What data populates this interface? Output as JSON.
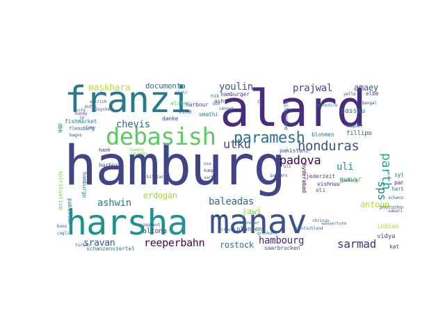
{
  "words": [
    {
      "text": "hamburg",
      "color": "#414487"
    },
    {
      "text": "alard",
      "color": "#472d7b"
    },
    {
      "text": "franzi",
      "color": "#2a788e"
    },
    {
      "text": "harsha",
      "color": "#21918c"
    },
    {
      "text": "manav",
      "color": "#3b528b"
    },
    {
      "text": "debasish",
      "color": "#5ec962"
    },
    {
      "text": "paramesh",
      "color": "#2c728e"
    },
    {
      "text": "honduras",
      "color": "#3b528b"
    },
    {
      "text": "prajwal",
      "color": "#3e4989"
    },
    {
      "text": "maskhara",
      "color": "#bddf26"
    },
    {
      "text": "documenta",
      "color": "#2c728e"
    },
    {
      "text": "youlin",
      "color": "#3b528b"
    },
    {
      "text": "utku",
      "color": "#414487"
    },
    {
      "text": "chevis",
      "color": "#31688e"
    },
    {
      "text": "padova",
      "color": "#440154"
    },
    {
      "text": "ashwin",
      "color": "#2a788e"
    },
    {
      "text": "erdogan",
      "color": "#a0da39"
    },
    {
      "text": "baleadas",
      "color": "#31688e"
    },
    {
      "text": "jawi",
      "color": "#7ad151"
    },
    {
      "text": "hambourg",
      "color": "#482878"
    },
    {
      "text": "sarmad",
      "color": "#472d7b"
    },
    {
      "text": "reeperbahn",
      "color": "#440154"
    },
    {
      "text": "rostock",
      "color": "#2c728e"
    },
    {
      "text": "sravan",
      "color": "#3b528b"
    },
    {
      "text": "altona",
      "color": "#414487"
    },
    {
      "text": "antoon",
      "color": "#bddf26"
    },
    {
      "text": "amaey",
      "color": "#3b528b"
    },
    {
      "text": "parth",
      "color": "#22a884"
    },
    {
      "text": "sps",
      "color": "#2a788e"
    },
    {
      "text": "gunar",
      "color": "#5ec962"
    },
    {
      "text": "uli",
      "color": "#21918c"
    },
    {
      "text": "sylt",
      "color": "#2c728e"
    },
    {
      "text": "panama",
      "color": "#482878"
    },
    {
      "text": "harburg",
      "color": "#2a788e"
    },
    {
      "text": "passau",
      "color": "#2c728e"
    },
    {
      "text": "fillipo",
      "color": "#3b528b"
    },
    {
      "text": "copan",
      "color": "#31688e"
    },
    {
      "text": "planten",
      "color": "#31688e"
    },
    {
      "text": "harbour",
      "color": "#3e4989"
    },
    {
      "text": "danke",
      "color": "#414487"
    },
    {
      "text": "eike",
      "color": "#3b528b"
    },
    {
      "text": "alster",
      "color": "#5ec962"
    },
    {
      "text": "smathi",
      "color": "#2a788e"
    },
    {
      "text": "hamburger",
      "color": "#414487"
    },
    {
      "text": "ash",
      "color": "#3e4989"
    },
    {
      "text": "nik",
      "color": "#2a788e"
    },
    {
      "text": "pakistani",
      "color": "#3b528b"
    },
    {
      "text": "vishnuu",
      "color": "#482878"
    },
    {
      "text": "jederzeit",
      "color": "#3e4989"
    },
    {
      "text": "oli",
      "color": "#414487"
    },
    {
      "text": "hyderabad",
      "color": "#440154"
    },
    {
      "text": "milwaukee",
      "color": "#2a788e"
    },
    {
      "text": "blohmen",
      "color": "#2a788e"
    },
    {
      "text": "elbe",
      "color": "#3e4989"
    },
    {
      "text": "photoshoot",
      "color": "#2c728e"
    },
    {
      "text": "indian",
      "color": "#bddf26"
    },
    {
      "text": "vidya",
      "color": "#3b528b"
    },
    {
      "text": "kat",
      "color": "#414487"
    },
    {
      "text": "schanzenviertel",
      "color": "#2a788e"
    },
    {
      "text": "saarbrucken",
      "color": "#3b528b"
    },
    {
      "text": "fishmarket",
      "color": "#2a788e"
    },
    {
      "text": "flensburg",
      "color": "#3b528b"
    },
    {
      "text": "hanh",
      "color": "#482878"
    },
    {
      "text": "harbor",
      "color": "#3e4989"
    },
    {
      "text": "hamburgo",
      "color": "#2a788e"
    },
    {
      "text": "pakistan",
      "color": "#2a788e"
    },
    {
      "text": "spiritualism",
      "color": "#7ad151"
    },
    {
      "text": "dbk",
      "color": "#31688e"
    },
    {
      "text": "tomy",
      "color": "#3b528b"
    },
    {
      "text": "psyche",
      "color": "#414487"
    },
    {
      "text": "ulirich",
      "color": "#3e4989"
    },
    {
      "text": "jp",
      "color": "#3b528b"
    },
    {
      "text": "cj",
      "color": "#3b528b"
    },
    {
      "text": "hannover",
      "color": "#31688e"
    },
    {
      "text": "deutschland",
      "color": "#2c728e"
    },
    {
      "text": "payment",
      "color": "#3e4989"
    },
    {
      "text": "turkan",
      "color": "#31688e"
    },
    {
      "text": "cagli",
      "color": "#31688e"
    },
    {
      "text": "buno",
      "color": "#414487"
    },
    {
      "text": "sabari",
      "color": "#3b528b"
    },
    {
      "text": "chrinun",
      "color": "#31688e"
    },
    {
      "text": "usa",
      "color": "#31688e"
    },
    {
      "text": "kumpir",
      "color": "#414487"
    },
    {
      "text": "sarkie",
      "color": "#3b528b"
    },
    {
      "text": "billiards",
      "color": "#3e4989"
    },
    {
      "text": "och",
      "color": "#3e4989"
    },
    {
      "text": "bagos",
      "color": "#3b528b"
    },
    {
      "text": "cennet",
      "color": "#3b528b"
    },
    {
      "text": "schanze",
      "color": "#3e4989"
    },
    {
      "text": "grunkohl",
      "color": "#2a788e"
    },
    {
      "text": "hamburg",
      "color": "#3e4989"
    },
    {
      "text": "passaru",
      "color": "#414487"
    },
    {
      "text": "tweets",
      "color": "#7ad151"
    },
    {
      "text": "uli",
      "color": "#3e4989"
    },
    {
      "text": "wasserturm",
      "color": "#2c728e"
    },
    {
      "text": "mutti",
      "color": "#3b528b"
    },
    {
      "text": "airport",
      "color": "#3b528b"
    },
    {
      "text": "yella",
      "color": "#3e4989"
    },
    {
      "text": "ulrtr",
      "color": "#2c728e"
    },
    {
      "text": "leuchte",
      "color": "#7ad151"
    },
    {
      "text": "mennonite",
      "color": "#2a788e"
    },
    {
      "text": "hundy",
      "color": "#414487"
    },
    {
      "text": "uste",
      "color": "#2a788e"
    },
    {
      "text": "bengal",
      "color": "#3b528b"
    }
  ]
}
